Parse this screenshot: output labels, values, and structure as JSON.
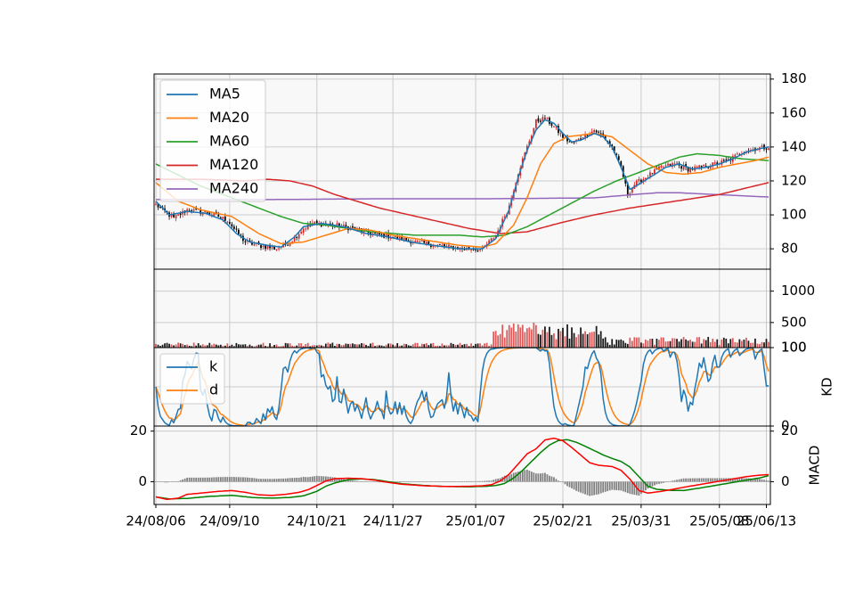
{
  "chart_data": {
    "type": "candlestick",
    "x_dates": [
      "24/08/06",
      "24/09/10",
      "24/10/21",
      "24/11/27",
      "25/01/07",
      "25/02/21",
      "25/03/31",
      "25/05/08",
      "25/06/13"
    ],
    "colors": {
      "MA5": "#1f77b4",
      "MA20": "#ff7f0e",
      "MA60": "#2ca02c",
      "MA120": "#d62728",
      "MA240": "#9467bd",
      "k": "#1f77b4",
      "d": "#ff7f0e",
      "dif": "#ff0000",
      "dea": "#008000",
      "hist": "#808080",
      "up": "#d62728",
      "down": "#000000",
      "grid": "#cccccc",
      "panel_bg": "#f8f8f8"
    },
    "price_panel": {
      "ylim": [
        68,
        183
      ],
      "yticks": [
        "80",
        "100",
        "120",
        "140",
        "160",
        "180"
      ],
      "legend": [
        "MA5",
        "MA20",
        "MA60",
        "MA120",
        "MA240"
      ],
      "legend_loc": "upper-left",
      "anchors": [
        [
          0,
          106
        ],
        [
          8,
          98
        ],
        [
          14,
          103
        ],
        [
          24,
          101
        ],
        [
          32,
          97
        ],
        [
          36,
          90
        ],
        [
          40,
          84
        ],
        [
          46,
          82
        ],
        [
          54,
          80
        ],
        [
          60,
          84
        ],
        [
          66,
          92
        ],
        [
          70,
          95
        ],
        [
          80,
          94
        ],
        [
          88,
          92
        ],
        [
          96,
          89
        ],
        [
          106,
          87
        ],
        [
          116,
          84
        ],
        [
          126,
          82
        ],
        [
          138,
          80
        ],
        [
          146,
          80
        ],
        [
          152,
          88
        ],
        [
          158,
          105
        ],
        [
          162,
          125
        ],
        [
          166,
          140
        ],
        [
          170,
          155
        ],
        [
          174,
          157
        ],
        [
          178,
          152
        ],
        [
          182,
          146
        ],
        [
          186,
          142
        ],
        [
          190,
          145
        ],
        [
          196,
          150
        ],
        [
          200,
          146
        ],
        [
          204,
          140
        ],
        [
          208,
          128
        ],
        [
          211,
          112
        ],
        [
          214,
          118
        ],
        [
          220,
          123
        ],
        [
          226,
          128
        ],
        [
          232,
          130
        ],
        [
          238,
          127
        ],
        [
          244,
          128
        ],
        [
          250,
          130
        ],
        [
          256,
          132
        ],
        [
          262,
          137
        ],
        [
          268,
          139
        ],
        [
          274,
          140
        ]
      ],
      "ma_lines": {
        "MA5": [
          [
            0,
            108
          ],
          [
            6,
            100
          ],
          [
            14,
            102
          ],
          [
            22,
            101
          ],
          [
            30,
            97
          ],
          [
            36,
            89
          ],
          [
            42,
            84
          ],
          [
            50,
            82
          ],
          [
            56,
            81
          ],
          [
            62,
            87
          ],
          [
            66,
            93
          ],
          [
            74,
            95
          ],
          [
            84,
            93
          ],
          [
            94,
            89
          ],
          [
            104,
            87
          ],
          [
            114,
            84
          ],
          [
            124,
            82
          ],
          [
            136,
            80
          ],
          [
            146,
            80
          ],
          [
            152,
            86
          ],
          [
            158,
            103
          ],
          [
            162,
            122
          ],
          [
            166,
            138
          ],
          [
            170,
            150
          ],
          [
            174,
            156
          ],
          [
            178,
            154
          ],
          [
            182,
            148
          ],
          [
            186,
            143
          ],
          [
            190,
            144
          ],
          [
            196,
            148
          ],
          [
            200,
            146
          ],
          [
            204,
            140
          ],
          [
            208,
            128
          ],
          [
            212,
            115
          ],
          [
            216,
            118
          ],
          [
            222,
            123
          ],
          [
            228,
            128
          ],
          [
            234,
            130
          ],
          [
            240,
            127
          ],
          [
            246,
            128
          ],
          [
            252,
            130
          ],
          [
            258,
            133
          ],
          [
            264,
            137
          ],
          [
            270,
            139
          ],
          [
            274,
            140
          ]
        ],
        "MA20": [
          [
            0,
            119
          ],
          [
            10,
            108
          ],
          [
            20,
            103
          ],
          [
            34,
            99
          ],
          [
            46,
            89
          ],
          [
            56,
            83
          ],
          [
            66,
            84
          ],
          [
            76,
            88
          ],
          [
            86,
            92
          ],
          [
            96,
            91
          ],
          [
            106,
            88
          ],
          [
            116,
            86
          ],
          [
            126,
            84
          ],
          [
            136,
            82
          ],
          [
            146,
            81
          ],
          [
            152,
            83
          ],
          [
            160,
            94
          ],
          [
            166,
            110
          ],
          [
            172,
            130
          ],
          [
            178,
            142
          ],
          [
            184,
            146
          ],
          [
            190,
            147
          ],
          [
            196,
            148
          ],
          [
            204,
            146
          ],
          [
            212,
            138
          ],
          [
            220,
            130
          ],
          [
            228,
            125
          ],
          [
            236,
            124
          ],
          [
            244,
            125
          ],
          [
            252,
            128
          ],
          [
            260,
            130
          ],
          [
            268,
            132
          ],
          [
            274,
            134
          ]
        ],
        "MA60": [
          [
            0,
            130
          ],
          [
            20,
            117
          ],
          [
            40,
            107
          ],
          [
            56,
            99
          ],
          [
            66,
            95
          ],
          [
            76,
            94
          ],
          [
            86,
            92
          ],
          [
            96,
            90
          ],
          [
            106,
            89
          ],
          [
            116,
            88
          ],
          [
            126,
            88
          ],
          [
            136,
            88
          ],
          [
            146,
            87
          ],
          [
            156,
            88
          ],
          [
            166,
            93
          ],
          [
            176,
            100
          ],
          [
            186,
            107
          ],
          [
            196,
            114
          ],
          [
            206,
            120
          ],
          [
            216,
            125
          ],
          [
            226,
            130
          ],
          [
            234,
            134
          ],
          [
            242,
            136
          ],
          [
            252,
            135
          ],
          [
            262,
            133
          ],
          [
            274,
            132
          ]
        ],
        "MA120": [
          [
            0,
            121
          ],
          [
            20,
            121
          ],
          [
            40,
            120
          ],
          [
            50,
            121
          ],
          [
            60,
            120
          ],
          [
            70,
            117
          ],
          [
            80,
            112
          ],
          [
            100,
            104
          ],
          [
            120,
            98
          ],
          [
            140,
            92
          ],
          [
            154,
            89
          ],
          [
            166,
            90
          ],
          [
            180,
            95
          ],
          [
            196,
            100
          ],
          [
            212,
            104
          ],
          [
            232,
            108
          ],
          [
            252,
            112
          ],
          [
            274,
            119
          ]
        ],
        "MA240": [
          [
            0,
            109
          ],
          [
            50,
            109
          ],
          [
            100,
            109.5
          ],
          [
            150,
            109.5
          ],
          [
            196,
            110
          ],
          [
            214,
            112
          ],
          [
            224,
            113
          ],
          [
            234,
            113
          ],
          [
            250,
            112
          ],
          [
            274,
            110.5
          ]
        ]
      }
    },
    "volume_panel": {
      "ylim": [
        100,
        1350
      ],
      "yticks": [
        "100",
        "500",
        "1000"
      ]
    },
    "kd_panel": {
      "ylabel": "KD",
      "ylim": [
        0,
        100
      ],
      "yticks": [
        "0",
        "100"
      ],
      "legend": [
        "k",
        "d"
      ],
      "legend_loc": "upper-left"
    },
    "macd_panel": {
      "ylabel": "MACD",
      "ylim": [
        -9,
        22
      ],
      "yticks": [
        "0",
        "20"
      ],
      "dif": [
        [
          0,
          -6
        ],
        [
          5,
          -7
        ],
        [
          10,
          -6.5
        ],
        [
          14,
          -5
        ],
        [
          20,
          -4.5
        ],
        [
          28,
          -3.8
        ],
        [
          34,
          -3.5
        ],
        [
          40,
          -4.2
        ],
        [
          46,
          -5.2
        ],
        [
          52,
          -5.4
        ],
        [
          58,
          -5
        ],
        [
          64,
          -4.2
        ],
        [
          68,
          -3.2
        ],
        [
          72,
          -1.5
        ],
        [
          76,
          0.3
        ],
        [
          80,
          1.2
        ],
        [
          86,
          1.4
        ],
        [
          92,
          1.2
        ],
        [
          98,
          0.6
        ],
        [
          104,
          -0.3
        ],
        [
          110,
          -1
        ],
        [
          120,
          -1.6
        ],
        [
          130,
          -1.9
        ],
        [
          140,
          -1.8
        ],
        [
          146,
          -1.6
        ],
        [
          150,
          -1.2
        ],
        [
          154,
          0.3
        ],
        [
          158,
          3
        ],
        [
          162,
          7
        ],
        [
          166,
          11
        ],
        [
          170,
          13
        ],
        [
          174,
          16.5
        ],
        [
          178,
          17.2
        ],
        [
          182,
          16.2
        ],
        [
          186,
          13.5
        ],
        [
          190,
          10.5
        ],
        [
          194,
          7.5
        ],
        [
          198,
          6.5
        ],
        [
          204,
          6
        ],
        [
          208,
          4.5
        ],
        [
          212,
          1
        ],
        [
          216,
          -3.5
        ],
        [
          220,
          -4.5
        ],
        [
          226,
          -3.8
        ],
        [
          230,
          -3.2
        ],
        [
          236,
          -2.2
        ],
        [
          244,
          -1
        ],
        [
          254,
          0.5
        ],
        [
          264,
          2
        ],
        [
          270,
          2.6
        ],
        [
          274,
          2.8
        ]
      ],
      "dea": [
        [
          0,
          -6
        ],
        [
          6,
          -6.8
        ],
        [
          14,
          -6.6
        ],
        [
          24,
          -5.8
        ],
        [
          34,
          -5.4
        ],
        [
          44,
          -6.3
        ],
        [
          52,
          -6.5
        ],
        [
          60,
          -6.2
        ],
        [
          66,
          -5.6
        ],
        [
          72,
          -3.8
        ],
        [
          76,
          -1.8
        ],
        [
          80,
          -0.5
        ],
        [
          86,
          0.8
        ],
        [
          92,
          1.1
        ],
        [
          98,
          0.8
        ],
        [
          104,
          0
        ],
        [
          110,
          -0.8
        ],
        [
          120,
          -1.5
        ],
        [
          130,
          -1.9
        ],
        [
          140,
          -2
        ],
        [
          148,
          -1.8
        ],
        [
          152,
          -1.5
        ],
        [
          156,
          -0.7
        ],
        [
          160,
          1.5
        ],
        [
          164,
          4.5
        ],
        [
          168,
          8
        ],
        [
          172,
          11.5
        ],
        [
          176,
          14.5
        ],
        [
          180,
          16.3
        ],
        [
          184,
          16.6
        ],
        [
          188,
          15.6
        ],
        [
          192,
          14
        ],
        [
          196,
          12.3
        ],
        [
          200,
          10.6
        ],
        [
          204,
          9.2
        ],
        [
          208,
          8
        ],
        [
          212,
          5.8
        ],
        [
          216,
          2
        ],
        [
          220,
          -1.8
        ],
        [
          224,
          -3
        ],
        [
          230,
          -3.4
        ],
        [
          236,
          -3.5
        ],
        [
          244,
          -2.4
        ],
        [
          254,
          -0.9
        ],
        [
          264,
          0.6
        ],
        [
          270,
          1.5
        ],
        [
          274,
          2.4
        ]
      ]
    }
  }
}
